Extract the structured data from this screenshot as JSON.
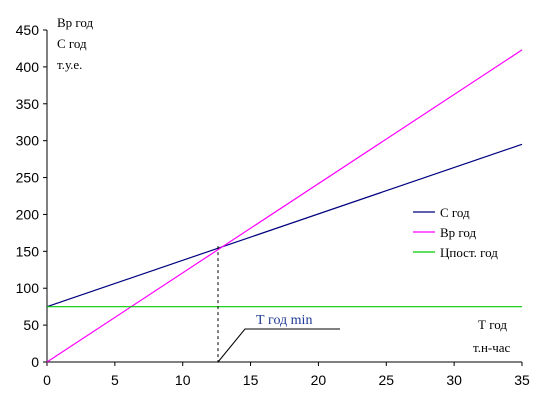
{
  "chart_data": {
    "type": "line",
    "x": [
      0,
      35
    ],
    "xlim": [
      0,
      35
    ],
    "ylim": [
      0,
      450
    ],
    "xticks": [
      0,
      5,
      10,
      15,
      20,
      25,
      30,
      35
    ],
    "yticks": [
      0,
      50,
      100,
      150,
      200,
      250,
      300,
      350,
      400,
      450
    ],
    "series": [
      {
        "name": "С год",
        "values": [
          75,
          295
        ],
        "color": "#000080"
      },
      {
        "name": "Вр год",
        "values": [
          0,
          423
        ],
        "color": "#ff00ff"
      },
      {
        "name": "Цпост. год",
        "values": [
          75,
          75
        ],
        "color": "#00cc00"
      }
    ],
    "ylabel_lines": [
      "Вр год",
      "С год",
      "т.у.е."
    ],
    "xlabel_lines": [
      "Т год",
      "т.н-час"
    ],
    "annotation": {
      "text": "Т год min",
      "x": 12.6,
      "y": 157,
      "color": "#1f3a93"
    },
    "grid": false,
    "legend_position": "right"
  }
}
